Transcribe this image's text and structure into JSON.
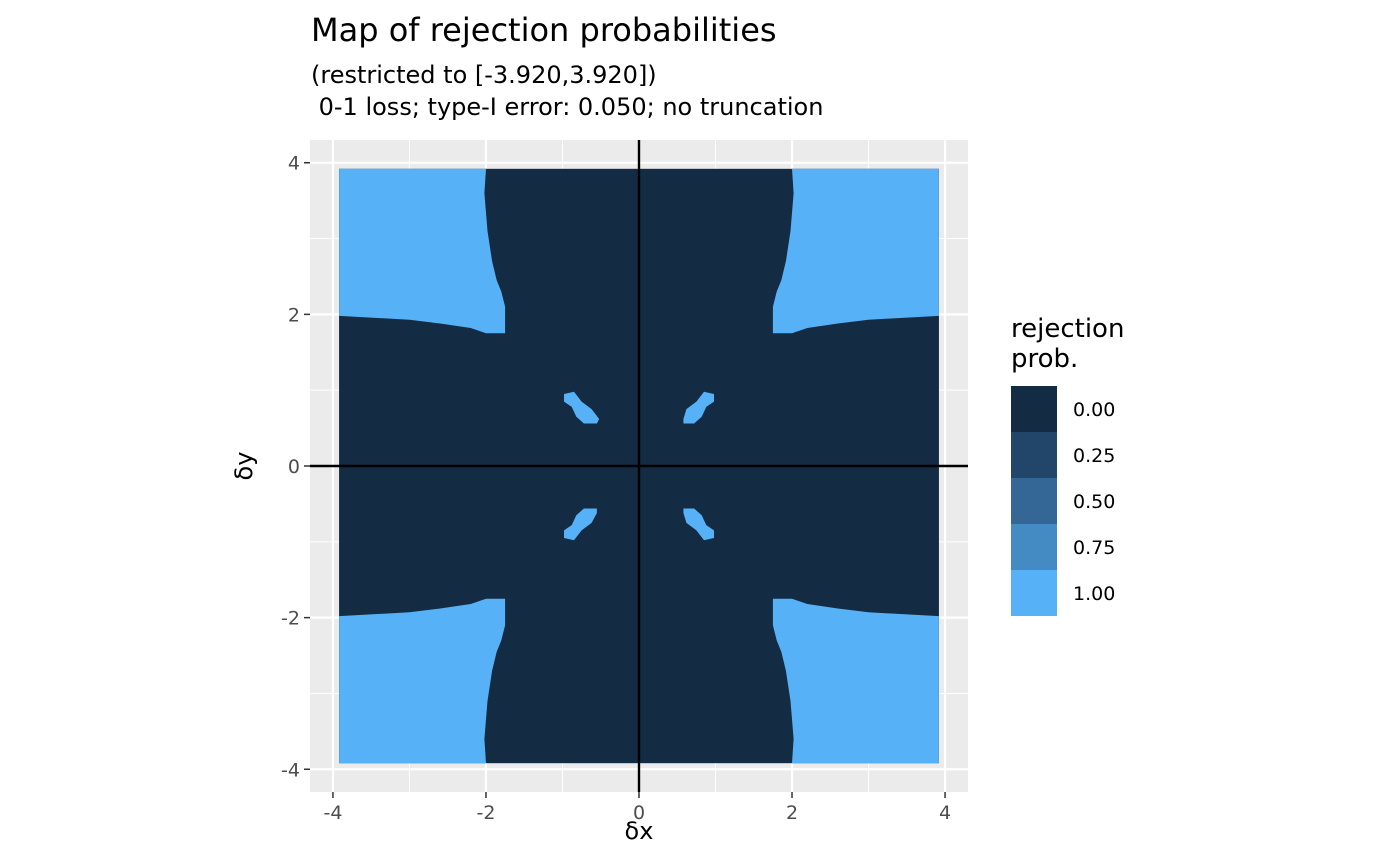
{
  "chart_data": {
    "type": "heatmap",
    "title": "Map of rejection probabilities",
    "subtitle_lines": [
      "(restricted to [-3.920,3.920])",
      " 0-1 loss; type-I error: 0.050; no truncation"
    ],
    "xlabel": "δx",
    "ylabel": "δy",
    "xlim": [
      -4.3,
      4.3
    ],
    "ylim": [
      -4.3,
      4.3
    ],
    "domain": [
      -3.92,
      3.92
    ],
    "x_ticks": [
      -4,
      -2,
      0,
      2,
      4
    ],
    "y_ticks": [
      -4,
      -2,
      0,
      2,
      4
    ],
    "x_tick_labels": [
      "-4",
      "-2",
      "0",
      "2",
      "4"
    ],
    "y_tick_labels": [
      "-4",
      "-2",
      "0",
      "2",
      "4"
    ],
    "grid": true,
    "reference_lines": {
      "x": 0,
      "y": 0
    },
    "legend": {
      "title_lines": [
        "rejection",
        "prob."
      ],
      "position": "right",
      "entries": [
        {
          "label": "0.00",
          "value": 0.0,
          "color": "#132B43"
        },
        {
          "label": "0.25",
          "value": 0.25,
          "color": "#22466A"
        },
        {
          "label": "0.50",
          "value": 0.5,
          "color": "#346795"
        },
        {
          "label": "0.75",
          "value": 0.75,
          "color": "#448AC3"
        },
        {
          "label": "1.00",
          "value": 1.0,
          "color": "#56B1F7"
        }
      ]
    },
    "background_value": 0.0,
    "regions": [
      {
        "name": "rejection-region-top-left",
        "value": 1.0,
        "polygon": [
          [
            -3.92,
            3.92
          ],
          [
            -2.0,
            3.92
          ],
          [
            -2.02,
            3.6
          ],
          [
            -1.98,
            3.1
          ],
          [
            -1.92,
            2.7
          ],
          [
            -1.86,
            2.45
          ],
          [
            -1.8,
            2.3
          ],
          [
            -1.75,
            2.1
          ],
          [
            -1.75,
            1.75
          ],
          [
            -2.0,
            1.75
          ],
          [
            -2.2,
            1.82
          ],
          [
            -2.6,
            1.88
          ],
          [
            -3.0,
            1.93
          ],
          [
            -3.92,
            1.98
          ]
        ]
      },
      {
        "name": "rejection-region-top-right",
        "value": 1.0,
        "polygon": [
          [
            3.92,
            3.92
          ],
          [
            2.0,
            3.92
          ],
          [
            2.02,
            3.6
          ],
          [
            1.98,
            3.1
          ],
          [
            1.92,
            2.7
          ],
          [
            1.86,
            2.45
          ],
          [
            1.8,
            2.3
          ],
          [
            1.75,
            2.1
          ],
          [
            1.75,
            1.75
          ],
          [
            2.0,
            1.75
          ],
          [
            2.2,
            1.82
          ],
          [
            2.6,
            1.88
          ],
          [
            3.0,
            1.93
          ],
          [
            3.92,
            1.98
          ]
        ]
      },
      {
        "name": "rejection-region-bottom-left",
        "value": 1.0,
        "polygon": [
          [
            -3.92,
            -3.92
          ],
          [
            -2.0,
            -3.92
          ],
          [
            -2.02,
            -3.6
          ],
          [
            -1.98,
            -3.1
          ],
          [
            -1.92,
            -2.7
          ],
          [
            -1.86,
            -2.45
          ],
          [
            -1.8,
            -2.3
          ],
          [
            -1.75,
            -2.1
          ],
          [
            -1.75,
            -1.75
          ],
          [
            -2.0,
            -1.75
          ],
          [
            -2.2,
            -1.82
          ],
          [
            -2.6,
            -1.88
          ],
          [
            -3.0,
            -1.93
          ],
          [
            -3.92,
            -1.98
          ]
        ]
      },
      {
        "name": "rejection-region-bottom-right",
        "value": 1.0,
        "polygon": [
          [
            3.92,
            -3.92
          ],
          [
            2.0,
            -3.92
          ],
          [
            2.02,
            -3.6
          ],
          [
            1.98,
            -3.1
          ],
          [
            1.92,
            -2.7
          ],
          [
            1.86,
            -2.45
          ],
          [
            1.8,
            -2.3
          ],
          [
            1.75,
            -2.1
          ],
          [
            1.75,
            -1.75
          ],
          [
            2.0,
            -1.75
          ],
          [
            2.2,
            -1.82
          ],
          [
            2.6,
            -1.88
          ],
          [
            3.0,
            -1.93
          ],
          [
            3.92,
            -1.98
          ]
        ]
      },
      {
        "name": "rejection-island-upper-left",
        "value": 1.0,
        "polygon": [
          [
            -0.98,
            0.95
          ],
          [
            -0.85,
            0.98
          ],
          [
            -0.75,
            0.85
          ],
          [
            -0.62,
            0.75
          ],
          [
            -0.52,
            0.62
          ],
          [
            -0.55,
            0.56
          ],
          [
            -0.72,
            0.56
          ],
          [
            -0.82,
            0.65
          ],
          [
            -0.88,
            0.78
          ],
          [
            -0.98,
            0.85
          ]
        ]
      },
      {
        "name": "rejection-island-upper-right",
        "value": 1.0,
        "polygon": [
          [
            0.98,
            0.95
          ],
          [
            0.85,
            0.98
          ],
          [
            0.75,
            0.85
          ],
          [
            0.62,
            0.75
          ],
          [
            0.58,
            0.62
          ],
          [
            0.58,
            0.56
          ],
          [
            0.72,
            0.56
          ],
          [
            0.82,
            0.65
          ],
          [
            0.88,
            0.78
          ],
          [
            0.98,
            0.85
          ]
        ]
      },
      {
        "name": "rejection-island-lower-left",
        "value": 1.0,
        "polygon": [
          [
            -0.98,
            -0.95
          ],
          [
            -0.85,
            -0.98
          ],
          [
            -0.75,
            -0.85
          ],
          [
            -0.62,
            -0.75
          ],
          [
            -0.55,
            -0.62
          ],
          [
            -0.55,
            -0.56
          ],
          [
            -0.72,
            -0.56
          ],
          [
            -0.82,
            -0.65
          ],
          [
            -0.88,
            -0.78
          ],
          [
            -0.98,
            -0.85
          ]
        ]
      },
      {
        "name": "rejection-island-lower-right",
        "value": 1.0,
        "polygon": [
          [
            0.98,
            -0.95
          ],
          [
            0.85,
            -0.98
          ],
          [
            0.75,
            -0.85
          ],
          [
            0.62,
            -0.75
          ],
          [
            0.58,
            -0.62
          ],
          [
            0.58,
            -0.56
          ],
          [
            0.72,
            -0.56
          ],
          [
            0.82,
            -0.65
          ],
          [
            0.88,
            -0.78
          ],
          [
            0.98,
            -0.85
          ]
        ]
      }
    ]
  },
  "colors": {
    "panel_background": "#EBEBEB",
    "grid_major": "#FFFFFF",
    "reference_line": "#000000"
  }
}
